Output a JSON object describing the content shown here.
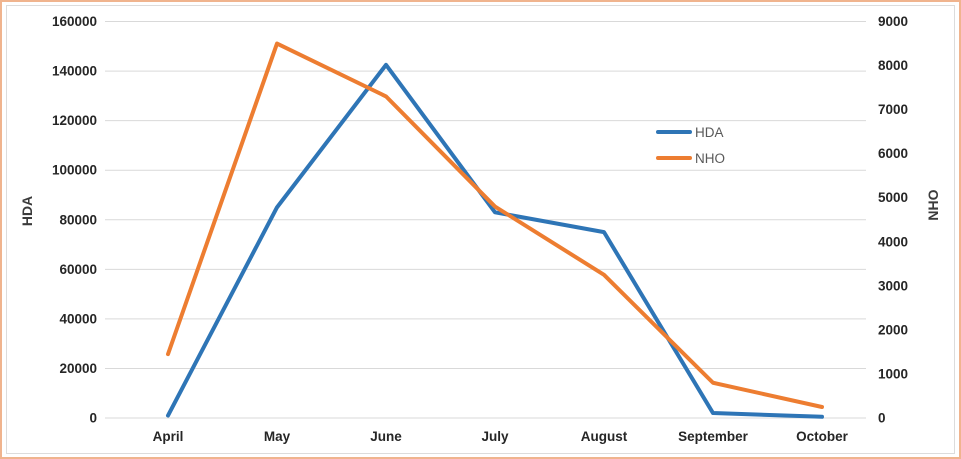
{
  "chart_data": {
    "type": "line",
    "title": "",
    "categories": [
      "April",
      "May",
      "June",
      "July",
      "August",
      "September",
      "October"
    ],
    "series": [
      {
        "name": "HDA",
        "axis": "left",
        "color": "#2E75B6",
        "values": [
          1000,
          85000,
          142500,
          83000,
          75000,
          2000,
          500
        ]
      },
      {
        "name": "NHO",
        "axis": "right",
        "color": "#ED7D31",
        "values": [
          1450,
          8500,
          7300,
          4800,
          3250,
          800,
          250
        ]
      }
    ],
    "left_axis": {
      "title": "HDA",
      "min": 0,
      "max": 160000,
      "step": 20000,
      "ticks": [
        "0",
        "20000",
        "40000",
        "60000",
        "80000",
        "100000",
        "120000",
        "140000",
        "160000"
      ]
    },
    "right_axis": {
      "title": "NHO",
      "min": 0,
      "max": 9000,
      "step": 1000,
      "ticks": [
        "0",
        "1000",
        "2000",
        "3000",
        "4000",
        "5000",
        "6000",
        "7000",
        "8000",
        "9000"
      ]
    },
    "legend": {
      "position": "center-right",
      "entries": [
        "HDA",
        "NHO"
      ]
    },
    "grid": {
      "show": true,
      "orientation": "horizontal"
    }
  },
  "styles": {
    "outer_border_color": "#F0B48E",
    "inner_frame_color": "#DCDCDC",
    "grid_color": "#D9D9D9",
    "tick_label_color": "#262626",
    "axis_title_color": "#3b3b3b",
    "legend_text_color": "#595959",
    "background_color": "#FFFFFF"
  }
}
